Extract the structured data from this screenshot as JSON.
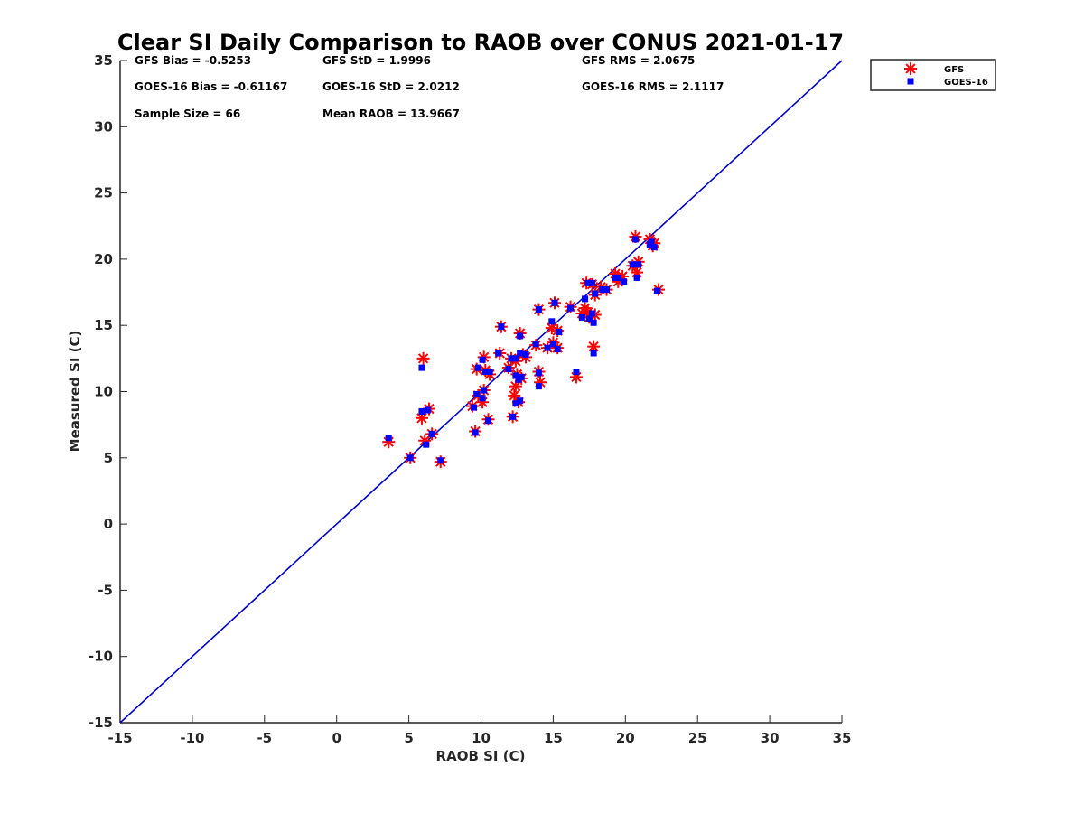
{
  "chart_data": {
    "type": "scatter",
    "title": "Clear SI Daily Comparison to RAOB over CONUS 2021-01-17",
    "xlabel": "RAOB SI (C)",
    "ylabel": "Measured SI (C)",
    "xlim": [
      -15,
      35
    ],
    "ylim": [
      -15,
      35
    ],
    "xticks": [
      -15,
      -10,
      -5,
      0,
      5,
      10,
      15,
      20,
      25,
      30,
      35
    ],
    "yticks": [
      -15,
      -10,
      -5,
      0,
      5,
      10,
      15,
      20,
      25,
      30,
      35
    ],
    "grid": false,
    "legend_position": "outside-top-right",
    "reference_line": {
      "from": [
        -15,
        -15
      ],
      "to": [
        35,
        35
      ],
      "color": "#0000cc"
    },
    "stats": [
      {
        "id": "gfs-bias",
        "text": "GFS Bias = -0.5253"
      },
      {
        "id": "gfs-std",
        "text": "GFS StD = 1.9996"
      },
      {
        "id": "gfs-rms",
        "text": "GFS RMS = 2.0675"
      },
      {
        "id": "goes-bias",
        "text": "GOES-16 Bias = -0.61167"
      },
      {
        "id": "goes-std",
        "text": "GOES-16 StD = 2.0212"
      },
      {
        "id": "goes-rms",
        "text": "GOES-16 RMS = 2.1117"
      },
      {
        "id": "sample-size",
        "text": "Sample Size = 66"
      },
      {
        "id": "mean-raob",
        "text": "Mean RAOB = 13.9667"
      }
    ],
    "series": [
      {
        "name": "GFS",
        "marker": "asterisk",
        "color": "#ff0000",
        "points": [
          [
            3.6,
            6.2
          ],
          [
            5.1,
            5.0
          ],
          [
            5.9,
            8.0
          ],
          [
            6.0,
            12.5
          ],
          [
            6.1,
            6.3
          ],
          [
            6.4,
            8.7
          ],
          [
            6.6,
            6.8
          ],
          [
            7.2,
            4.7
          ],
          [
            9.4,
            8.9
          ],
          [
            9.6,
            7.0
          ],
          [
            9.7,
            11.7
          ],
          [
            9.8,
            9.7
          ],
          [
            10.1,
            9.2
          ],
          [
            10.2,
            12.6
          ],
          [
            10.3,
            11.6
          ],
          [
            10.5,
            7.9
          ],
          [
            10.6,
            11.3
          ],
          [
            11.3,
            12.9
          ],
          [
            11.4,
            14.9
          ],
          [
            11.9,
            11.8
          ],
          [
            12.1,
            12.5
          ],
          [
            12.2,
            8.1
          ],
          [
            12.3,
            9.7
          ],
          [
            12.4,
            10.4
          ],
          [
            12.5,
            11.3
          ],
          [
            12.6,
            9.2
          ],
          [
            12.7,
            14.4
          ],
          [
            12.8,
            11.0
          ],
          [
            13.1,
            12.6
          ],
          [
            13.8,
            13.5
          ],
          [
            14.0,
            16.2
          ],
          [
            14.0,
            11.5
          ],
          [
            14.1,
            10.7
          ],
          [
            14.6,
            13.3
          ],
          [
            14.9,
            14.8
          ],
          [
            15.1,
            16.7
          ],
          [
            15.3,
            13.3
          ],
          [
            16.2,
            16.4
          ],
          [
            16.6,
            11.1
          ],
          [
            17.0,
            15.9
          ],
          [
            17.2,
            16.3
          ],
          [
            17.3,
            18.2
          ],
          [
            17.4,
            16.0
          ],
          [
            17.7,
            18.1
          ],
          [
            17.8,
            13.4
          ],
          [
            17.9,
            17.3
          ],
          [
            18.7,
            17.7
          ],
          [
            19.3,
            18.9
          ],
          [
            19.5,
            18.3
          ],
          [
            19.8,
            18.7
          ],
          [
            20.5,
            19.5
          ],
          [
            20.7,
            21.7
          ],
          [
            20.8,
            19.0
          ],
          [
            20.9,
            19.8
          ],
          [
            21.7,
            21.5
          ],
          [
            22.0,
            21.2
          ],
          [
            22.3,
            17.7
          ],
          [
            15.0,
            13.7
          ],
          [
            17.5,
            15.6
          ],
          [
            12.4,
            12.3
          ],
          [
            10.2,
            10.1
          ],
          [
            12.9,
            12.8
          ],
          [
            18.3,
            17.9
          ],
          [
            21.9,
            21.0
          ],
          [
            15.3,
            14.6
          ],
          [
            17.9,
            15.8
          ]
        ]
      },
      {
        "name": "GOES-16",
        "marker": "square",
        "color": "#0000ff",
        "points": [
          [
            3.6,
            6.5
          ],
          [
            5.1,
            5.0
          ],
          [
            5.9,
            8.5
          ],
          [
            5.9,
            11.8
          ],
          [
            6.2,
            6.0
          ],
          [
            6.3,
            8.6
          ],
          [
            6.6,
            6.8
          ],
          [
            7.2,
            4.8
          ],
          [
            9.5,
            8.8
          ],
          [
            9.6,
            6.9
          ],
          [
            9.8,
            11.8
          ],
          [
            9.7,
            9.8
          ],
          [
            10.1,
            9.5
          ],
          [
            10.1,
            12.4
          ],
          [
            10.3,
            11.5
          ],
          [
            10.5,
            7.8
          ],
          [
            10.6,
            11.5
          ],
          [
            11.2,
            12.9
          ],
          [
            11.4,
            14.9
          ],
          [
            11.9,
            11.7
          ],
          [
            12.1,
            12.5
          ],
          [
            12.2,
            8.1
          ],
          [
            12.4,
            9.1
          ],
          [
            12.4,
            11.2
          ],
          [
            12.6,
            10.9
          ],
          [
            12.7,
            9.3
          ],
          [
            12.7,
            14.2
          ],
          [
            12.8,
            11.1
          ],
          [
            13.1,
            12.8
          ],
          [
            13.8,
            13.6
          ],
          [
            14.0,
            16.2
          ],
          [
            14.0,
            11.4
          ],
          [
            14.0,
            10.4
          ],
          [
            14.6,
            13.3
          ],
          [
            14.9,
            15.3
          ],
          [
            15.1,
            16.7
          ],
          [
            15.3,
            13.2
          ],
          [
            16.2,
            16.3
          ],
          [
            16.6,
            11.5
          ],
          [
            17.0,
            15.6
          ],
          [
            17.2,
            17.0
          ],
          [
            17.4,
            18.2
          ],
          [
            17.5,
            15.5
          ],
          [
            17.7,
            18.2
          ],
          [
            17.8,
            12.9
          ],
          [
            17.9,
            17.4
          ],
          [
            18.7,
            17.7
          ],
          [
            19.3,
            18.6
          ],
          [
            19.5,
            18.6
          ],
          [
            19.9,
            18.3
          ],
          [
            20.5,
            19.6
          ],
          [
            20.7,
            21.5
          ],
          [
            20.8,
            18.6
          ],
          [
            20.9,
            19.6
          ],
          [
            21.7,
            21.1
          ],
          [
            22.0,
            20.9
          ],
          [
            22.2,
            17.6
          ],
          [
            15.0,
            13.6
          ],
          [
            17.8,
            15.2
          ],
          [
            12.4,
            12.5
          ],
          [
            10.2,
            10.1
          ],
          [
            12.7,
            12.9
          ],
          [
            18.4,
            17.7
          ],
          [
            21.8,
            21.3
          ],
          [
            15.4,
            14.5
          ],
          [
            17.7,
            15.9
          ]
        ]
      }
    ]
  }
}
